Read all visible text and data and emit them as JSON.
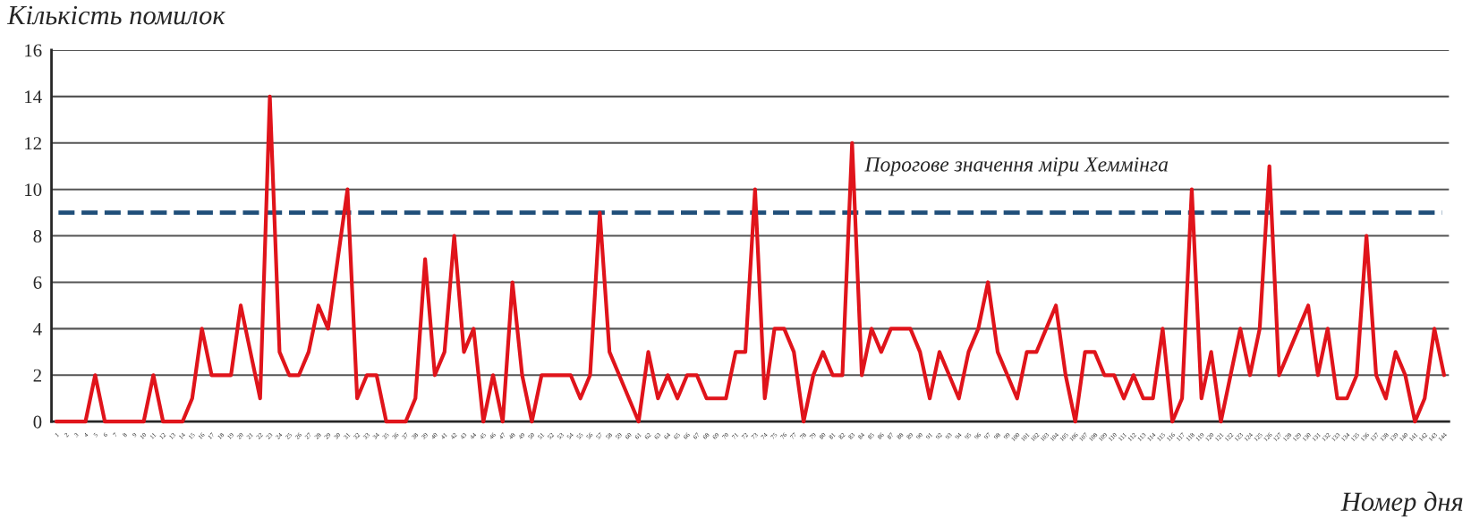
{
  "chart_data": {
    "type": "line",
    "ylabel": "Кількість помилок",
    "xlabel": "Номер дня",
    "categories": [
      "1",
      "2",
      "3",
      "4",
      "5",
      "6",
      "7",
      "8",
      "9",
      "10",
      "11",
      "12",
      "13",
      "14",
      "15",
      "16",
      "17",
      "18",
      "19",
      "20",
      "21",
      "22",
      "23",
      "24",
      "25",
      "26",
      "27",
      "28",
      "29",
      "30",
      "31",
      "32",
      "33",
      "34",
      "35",
      "36",
      "37",
      "38",
      "39",
      "40",
      "41",
      "42",
      "43",
      "44",
      "45",
      "46",
      "47",
      "48",
      "49",
      "50",
      "51",
      "52",
      "53",
      "54",
      "55",
      "56",
      "57",
      "58",
      "59",
      "60",
      "61",
      "62",
      "63",
      "64",
      "65",
      "66",
      "67",
      "68",
      "69",
      "70",
      "71",
      "72",
      "73",
      "74",
      "75",
      "76",
      "77",
      "78",
      "79",
      "80",
      "81",
      "82",
      "83",
      "84",
      "85",
      "86",
      "87",
      "88",
      "89",
      "90",
      "91",
      "92",
      "93",
      "94",
      "95",
      "96",
      "97",
      "98",
      "99",
      "100",
      "101",
      "102",
      "103",
      "104",
      "105",
      "106",
      "107",
      "108",
      "109",
      "110",
      "111",
      "112",
      "113",
      "114",
      "115",
      "116",
      "117",
      "118",
      "119",
      "120",
      "121",
      "122",
      "123",
      "124",
      "125",
      "126",
      "127",
      "128",
      "129",
      "130",
      "131",
      "132",
      "133",
      "134",
      "135",
      "136",
      "137",
      "138",
      "139",
      "140",
      "141",
      "142",
      "143",
      "144"
    ],
    "series": [
      {
        "color": "#e0141b",
        "values": [
          0,
          0,
          0,
          0,
          2,
          0,
          0,
          0,
          0,
          0,
          2,
          0,
          0,
          0,
          1,
          4,
          2,
          2,
          2,
          5,
          3,
          1,
          14,
          3,
          2,
          2,
          3,
          5,
          4,
          7,
          10,
          1,
          2,
          2,
          0,
          0,
          0,
          1,
          7,
          2,
          3,
          8,
          3,
          4,
          0,
          2,
          0,
          6,
          2,
          0,
          2,
          2,
          2,
          2,
          1,
          2,
          9,
          3,
          2,
          1,
          0,
          3,
          1,
          2,
          1,
          2,
          2,
          1,
          1,
          1,
          3,
          3,
          10,
          1,
          4,
          4,
          3,
          0,
          2,
          3,
          2,
          2,
          12,
          2,
          4,
          3,
          4,
          4,
          4,
          3,
          1,
          3,
          2,
          1,
          3,
          4,
          6,
          3,
          2,
          1,
          3,
          3,
          4,
          5,
          2,
          0,
          3,
          3,
          2,
          2,
          1,
          2,
          1,
          1,
          4,
          0,
          1,
          10,
          1,
          3,
          0,
          2,
          4,
          2,
          4,
          11,
          2,
          3,
          4,
          5,
          2,
          4,
          1,
          1,
          2,
          8,
          2,
          1,
          3,
          2,
          0,
          1,
          4,
          2
        ]
      }
    ],
    "ylim": [
      0,
      16
    ],
    "yticks": [
      0,
      2,
      4,
      6,
      8,
      10,
      12,
      14,
      16
    ],
    "grid": "y",
    "legend": false,
    "marker": "none",
    "line_style": "solid",
    "ref_lines": [
      {
        "axis": "y",
        "value": 9,
        "label": "Порогове значення міри Хеммінга",
        "color": "#1f4e79",
        "line_style": "dashed"
      }
    ]
  }
}
